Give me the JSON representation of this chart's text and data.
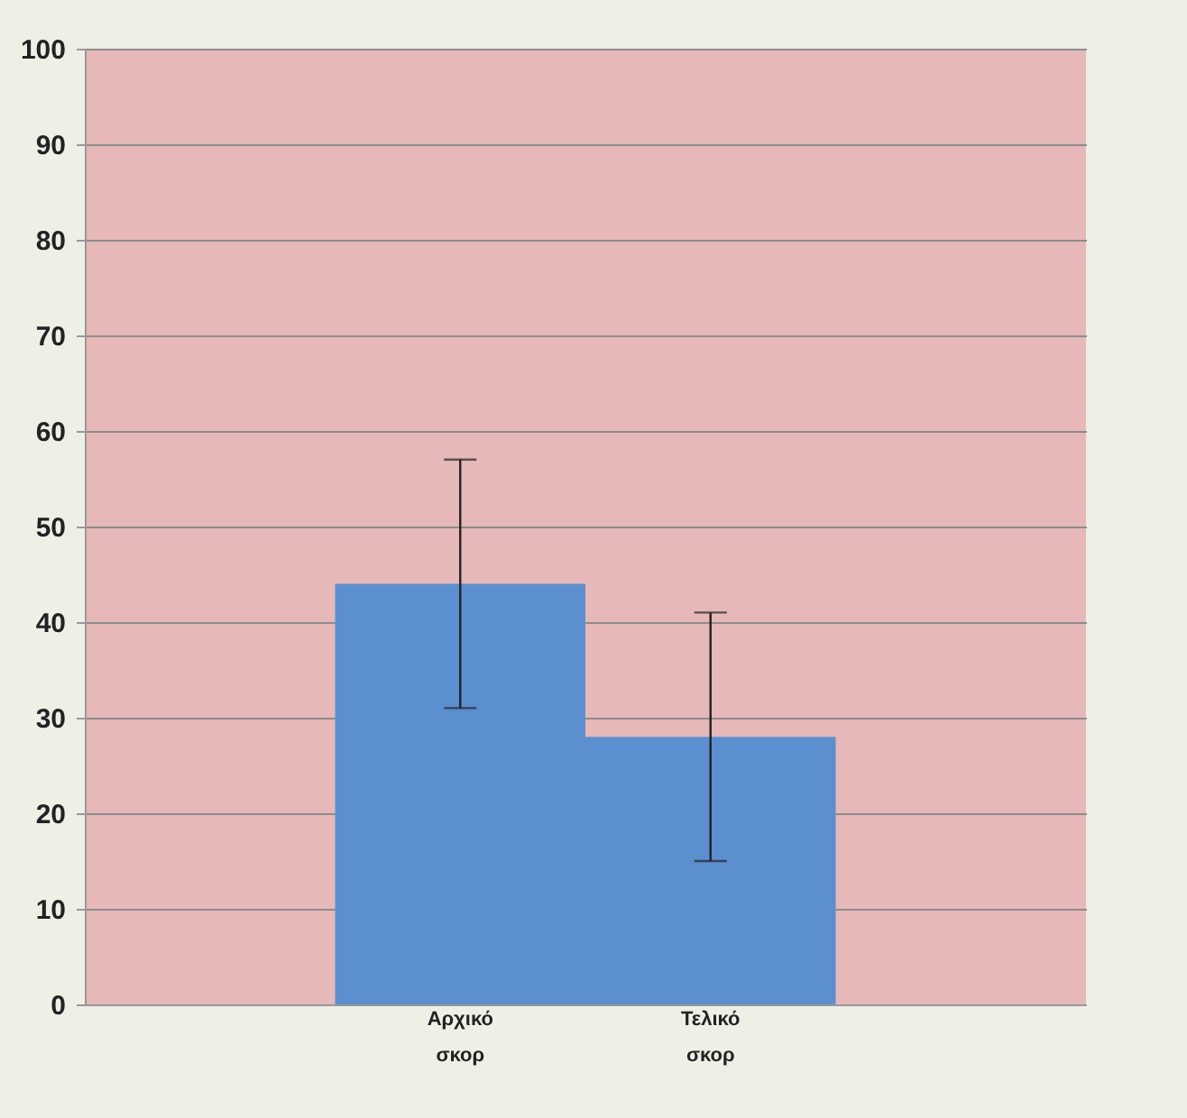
{
  "chart_data": {
    "type": "bar",
    "categories": [
      "Αρχικό σκορ",
      "Τελικό σκορ"
    ],
    "values": [
      44,
      28
    ],
    "errors": [
      13,
      13
    ],
    "color": "#5b8fd0",
    "ylim": [
      0,
      100
    ],
    "yticks": [
      0,
      10,
      20,
      30,
      40,
      50,
      60,
      70,
      80,
      90,
      100
    ],
    "grid": "y"
  }
}
